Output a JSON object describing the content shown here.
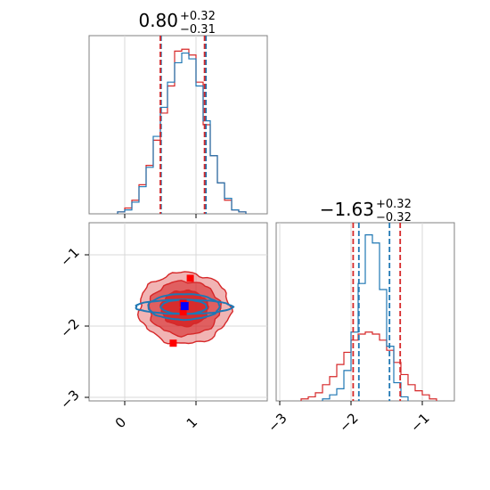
{
  "chart_data": [
    {
      "type": "histogram",
      "panel": "top-left",
      "title": {
        "value": "0.80",
        "upper": "+0.32",
        "lower": "−0.31"
      },
      "xlim": [
        -0.5,
        2.0
      ],
      "grid": true,
      "quantile_lines": {
        "red": [
          0.5,
          1.12
        ],
        "blue": [
          0.51,
          1.14
        ]
      },
      "series": [
        {
          "color": "#d62728",
          "bin_edges": [
            -0.1,
            0.0,
            0.1,
            0.2,
            0.3,
            0.4,
            0.5,
            0.6,
            0.7,
            0.8,
            0.9,
            1.0,
            1.1,
            1.2,
            1.3,
            1.4,
            1.5,
            1.6,
            1.7
          ],
          "values": [
            0.01,
            0.03,
            0.07,
            0.15,
            0.25,
            0.38,
            0.52,
            0.66,
            0.84,
            0.85,
            0.82,
            0.68,
            0.46,
            0.3,
            0.16,
            0.07,
            0.02,
            0.01
          ]
        },
        {
          "color": "#1f77b4",
          "bin_edges": [
            -0.1,
            0.0,
            0.1,
            0.2,
            0.3,
            0.4,
            0.5,
            0.6,
            0.7,
            0.8,
            0.9,
            1.0,
            1.1,
            1.2,
            1.3,
            1.4,
            1.5,
            1.6,
            1.7
          ],
          "values": [
            0.01,
            0.02,
            0.06,
            0.14,
            0.24,
            0.4,
            0.55,
            0.68,
            0.78,
            0.83,
            0.8,
            0.66,
            0.48,
            0.3,
            0.16,
            0.08,
            0.02,
            0.01
          ]
        }
      ]
    },
    {
      "type": "contour",
      "panel": "bottom-left",
      "xlim": [
        -0.5,
        2.0
      ],
      "ylim": [
        -3.05,
        -0.55
      ],
      "x_ticks": [
        "0",
        "1"
      ],
      "y_ticks": [
        "−1",
        "−2",
        "−3"
      ],
      "x_tick_values": [
        0,
        1
      ],
      "y_tick_values": [
        -1,
        -2,
        -3
      ],
      "grid": true,
      "red_contours": {
        "color": "#d62728",
        "center": [
          0.84,
          -1.75
        ],
        "levels": [
          {
            "rx": 0.64,
            "ry": 0.5,
            "opacity": 0.35
          },
          {
            "rx": 0.5,
            "ry": 0.38,
            "opacity": 0.6
          },
          {
            "rx": 0.33,
            "ry": 0.25,
            "opacity": 0.9
          }
        ]
      },
      "blue_contours": {
        "color": "#1f77b4",
        "center": [
          0.83,
          -1.73
        ],
        "levels": [
          {
            "rx": 0.68,
            "ry": 0.1
          },
          {
            "rx": 0.5,
            "ry": 0.18
          },
          {
            "rx": 0.32,
            "ry": 0.1
          }
        ]
      },
      "red_points": [
        {
          "x": 0.92,
          "y": -1.33
        },
        {
          "x": 0.82,
          "y": -1.68
        },
        {
          "x": 0.82,
          "y": -1.8
        },
        {
          "x": 0.68,
          "y": -2.24
        }
      ],
      "blue_point": {
        "x": 0.84,
        "y": -1.72
      }
    },
    {
      "type": "histogram",
      "panel": "bottom-right",
      "title": {
        "value": "−1.63",
        "upper": "+0.32",
        "lower": "−0.32"
      },
      "xlim": [
        -3.05,
        -0.55
      ],
      "x_ticks": [
        "−3",
        "−2",
        "−1"
      ],
      "x_tick_values": [
        -3,
        -2,
        -1
      ],
      "grid": true,
      "quantile_lines": {
        "red": [
          -1.97,
          -1.31
        ],
        "blue": [
          -1.89,
          -1.46
        ]
      },
      "series": [
        {
          "color": "#d62728",
          "bin_edges": [
            -2.7,
            -2.6,
            -2.5,
            -2.4,
            -2.3,
            -2.2,
            -2.1,
            -2.0,
            -1.9,
            -1.8,
            -1.7,
            -1.6,
            -1.5,
            -1.4,
            -1.3,
            -1.2,
            -1.1,
            -1.0,
            -0.9,
            -0.8
          ],
          "values": [
            0.01,
            0.02,
            0.04,
            0.08,
            0.12,
            0.18,
            0.24,
            0.3,
            0.33,
            0.34,
            0.33,
            0.3,
            0.25,
            0.19,
            0.13,
            0.08,
            0.05,
            0.03,
            0.01
          ]
        },
        {
          "color": "#1f77b4",
          "bin_edges": [
            -2.4,
            -2.3,
            -2.2,
            -2.1,
            -2.0,
            -1.9,
            -1.8,
            -1.7,
            -1.6,
            -1.5,
            -1.4,
            -1.3,
            -1.2
          ],
          "values": [
            0.01,
            0.03,
            0.06,
            0.15,
            0.34,
            0.58,
            0.82,
            0.78,
            0.55,
            0.27,
            0.09,
            0.02
          ]
        }
      ]
    }
  ]
}
